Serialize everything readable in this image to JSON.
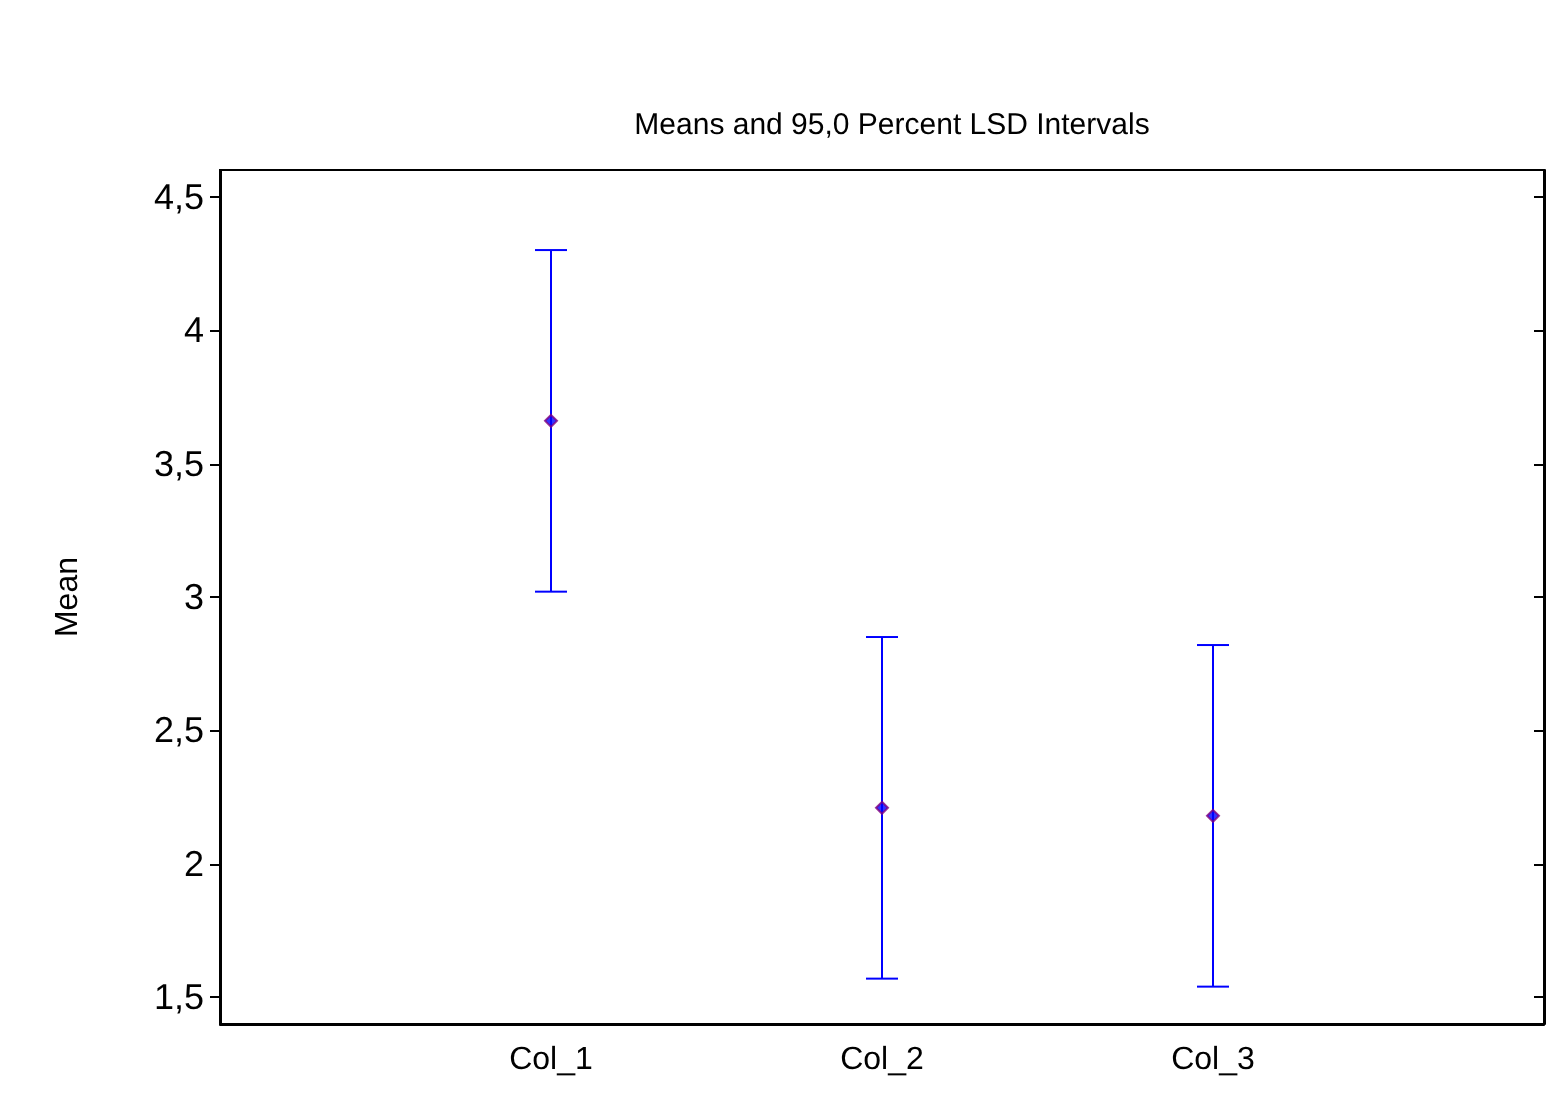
{
  "chart_data": {
    "type": "scatter",
    "title": "Means and 95,0 Percent LSD Intervals",
    "ylabel": "Mean",
    "categories": [
      "Col_1",
      "Col_2",
      "Col_3"
    ],
    "series": [
      {
        "color": "#0000ff",
        "values": [
          3.66,
          2.21,
          2.18
        ],
        "errors": [
          0.64,
          0.64,
          0.64
        ]
      }
    ],
    "ylim": [
      1.4,
      4.6
    ],
    "yticks": [
      {
        "value": 1.5,
        "label": "1,5"
      },
      2,
      {
        "value": 2.5,
        "label": "2,5"
      },
      3,
      {
        "value": 3.5,
        "label": "3,5"
      },
      4,
      {
        "value": 4.5,
        "label": "4,5"
      }
    ],
    "marker": "diamond"
  }
}
